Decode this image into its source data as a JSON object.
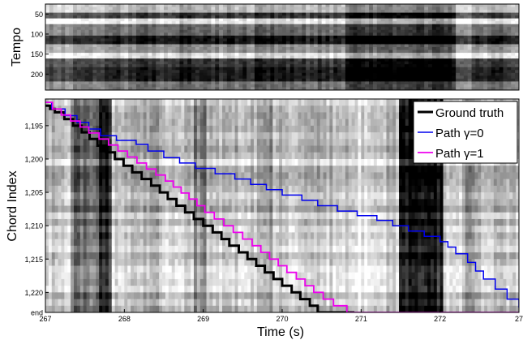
{
  "chart_data": [
    {
      "type": "heatmap",
      "ylabel": "Tempo",
      "y_ticks": [
        "50",
        "100",
        "150",
        "200"
      ],
      "ylim": [
        25,
        240
      ],
      "colormap": "grayscale"
    },
    {
      "type": "line",
      "xlabel": "Time (s)",
      "ylabel": "Chord Index",
      "xlim": [
        267,
        273
      ],
      "ylim": [
        1191,
        1223
      ],
      "x_ticks": [
        "267",
        "268",
        "269",
        "270",
        "271",
        "272",
        "27"
      ],
      "y_ticks": [
        "1,195",
        "1,200",
        "1,205",
        "1,210",
        "1,215",
        "1,220",
        "end"
      ],
      "y_tick_values": [
        1195,
        1200,
        1205,
        1210,
        1215,
        1220,
        1223
      ],
      "legend_position": "top-right",
      "series": [
        {
          "name": "Ground truth",
          "color": "#000000",
          "width": 3,
          "points": [
            [
              267.0,
              1192
            ],
            [
              267.06,
              1192.5
            ],
            [
              267.12,
              1193
            ],
            [
              267.24,
              1194
            ],
            [
              267.35,
              1195
            ],
            [
              267.46,
              1196
            ],
            [
              267.56,
              1197
            ],
            [
              267.66,
              1198
            ],
            [
              267.77,
              1199
            ],
            [
              267.88,
              1200
            ],
            [
              267.99,
              1201
            ],
            [
              268.1,
              1202
            ],
            [
              268.22,
              1203
            ],
            [
              268.34,
              1204
            ],
            [
              268.45,
              1205
            ],
            [
              268.55,
              1206
            ],
            [
              268.66,
              1207
            ],
            [
              268.77,
              1208
            ],
            [
              268.88,
              1209
            ],
            [
              269.0,
              1210
            ],
            [
              269.12,
              1211
            ],
            [
              269.23,
              1212
            ],
            [
              269.33,
              1213
            ],
            [
              269.45,
              1214
            ],
            [
              269.56,
              1215
            ],
            [
              269.67,
              1216
            ],
            [
              269.78,
              1217
            ],
            [
              269.89,
              1218
            ],
            [
              270.0,
              1219
            ],
            [
              270.12,
              1220
            ],
            [
              270.23,
              1221
            ],
            [
              270.35,
              1222
            ],
            [
              270.45,
              1223
            ],
            [
              270.9,
              1223.2
            ],
            [
              273.0,
              1223.2
            ]
          ]
        },
        {
          "name": "Path γ=0",
          "color": "#0000ee",
          "width": 1.5,
          "points": [
            [
              267.0,
              1191.5
            ],
            [
              267.08,
              1192.5
            ],
            [
              267.25,
              1193.5
            ],
            [
              267.4,
              1194.5
            ],
            [
              267.55,
              1195.5
            ],
            [
              267.7,
              1196.5
            ],
            [
              267.9,
              1197.2
            ],
            [
              268.15,
              1197.8
            ],
            [
              268.3,
              1198.8
            ],
            [
              268.5,
              1199.8
            ],
            [
              268.7,
              1200.6
            ],
            [
              268.9,
              1201.4
            ],
            [
              269.15,
              1202.2
            ],
            [
              269.4,
              1203.0
            ],
            [
              269.6,
              1203.8
            ],
            [
              269.8,
              1204.6
            ],
            [
              270.0,
              1205.4
            ],
            [
              270.25,
              1206.2
            ],
            [
              270.45,
              1207.0
            ],
            [
              270.7,
              1207.8
            ],
            [
              270.95,
              1208.5
            ],
            [
              271.2,
              1209.2
            ],
            [
              271.4,
              1210.0
            ],
            [
              271.6,
              1210.8
            ],
            [
              271.8,
              1211.6
            ],
            [
              272.0,
              1212.4
            ],
            [
              272.1,
              1213.2
            ],
            [
              272.2,
              1214.2
            ],
            [
              272.35,
              1215.5
            ],
            [
              272.45,
              1216.8
            ],
            [
              272.55,
              1218.0
            ],
            [
              272.7,
              1219.5
            ],
            [
              272.85,
              1221.0
            ],
            [
              273.0,
              1222.2
            ],
            [
              273.1,
              1223
            ]
          ]
        },
        {
          "name": "Path γ=1",
          "color": "#ee00ee",
          "width": 1.8,
          "points": [
            [
              267.0,
              1191.5
            ],
            [
              267.09,
              1192.5
            ],
            [
              267.2,
              1193.4
            ],
            [
              267.32,
              1194.3
            ],
            [
              267.44,
              1195.2
            ],
            [
              267.55,
              1196.1
            ],
            [
              267.68,
              1197.0
            ],
            [
              267.8,
              1197.9
            ],
            [
              267.92,
              1198.8
            ],
            [
              268.04,
              1199.7
            ],
            [
              268.16,
              1200.6
            ],
            [
              268.28,
              1201.5
            ],
            [
              268.4,
              1202.4
            ],
            [
              268.52,
              1203.3
            ],
            [
              268.62,
              1204.2
            ],
            [
              268.72,
              1205.1
            ],
            [
              268.82,
              1206.0
            ],
            [
              268.92,
              1207.0
            ],
            [
              269.02,
              1208.0
            ],
            [
              269.14,
              1209.0
            ],
            [
              269.26,
              1210.0
            ],
            [
              269.38,
              1211.0
            ],
            [
              269.5,
              1212.0
            ],
            [
              269.62,
              1213.0
            ],
            [
              269.73,
              1214.0
            ],
            [
              269.84,
              1215.0
            ],
            [
              269.95,
              1216.0
            ],
            [
              270.06,
              1217.0
            ],
            [
              270.18,
              1218.0
            ],
            [
              270.29,
              1219.0
            ],
            [
              270.4,
              1220.0
            ],
            [
              270.52,
              1221.0
            ],
            [
              270.65,
              1222.0
            ],
            [
              270.82,
              1223
            ],
            [
              273.0,
              1223.1
            ]
          ]
        }
      ]
    }
  ]
}
